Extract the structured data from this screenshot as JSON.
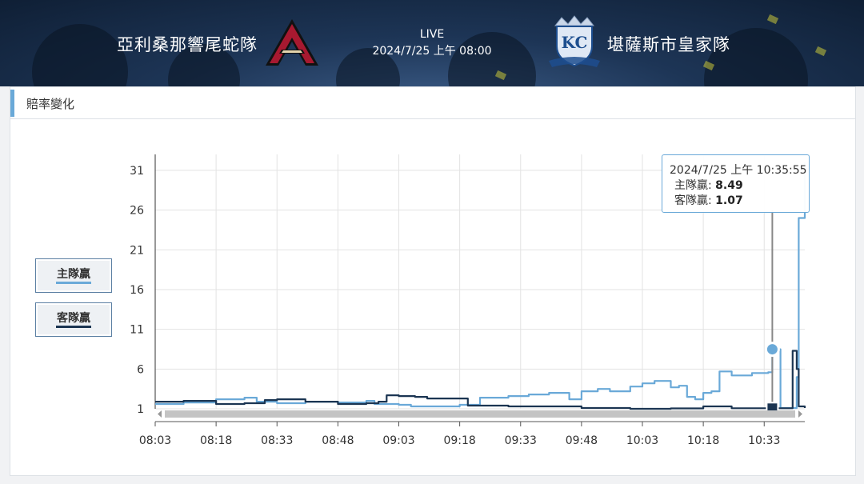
{
  "header": {
    "home_team": "亞利桑那響尾蛇隊",
    "away_team": "堪薩斯市皇家隊",
    "status": "LIVE",
    "match_time": "2024/7/25 上午 08:00"
  },
  "section": {
    "title": "賠率變化"
  },
  "legend": {
    "home": "主隊贏",
    "away": "客隊贏"
  },
  "tooltip": {
    "time": "2024/7/25 上午 10:35:55",
    "home_label": "主隊贏: ",
    "home_value": "8.49",
    "away_label": "客隊贏: ",
    "away_value": "1.07"
  },
  "colors": {
    "home": "#6aa9d8",
    "away": "#1b3552",
    "accent": "#6aa9d8"
  },
  "chart_data": {
    "type": "line",
    "x_unit": "time",
    "xticks": [
      "08:03",
      "08:18",
      "08:33",
      "08:48",
      "09:03",
      "09:18",
      "09:33",
      "09:48",
      "10:03",
      "10:18",
      "10:33"
    ],
    "yticks": [
      1,
      6,
      11,
      16,
      21,
      26,
      31
    ],
    "ylim": [
      1,
      33
    ],
    "xlim": [
      "08:03",
      "10:43"
    ],
    "grid": true,
    "series": [
      {
        "name": "主隊贏",
        "color": "#6aa9d8",
        "points": [
          [
            "08:03",
            1.6
          ],
          [
            "08:10",
            1.8
          ],
          [
            "08:18",
            2.2
          ],
          [
            "08:25",
            2.4
          ],
          [
            "08:28",
            1.9
          ],
          [
            "08:33",
            1.7
          ],
          [
            "08:40",
            1.9
          ],
          [
            "08:48",
            1.8
          ],
          [
            "08:55",
            2.0
          ],
          [
            "08:57",
            1.6
          ],
          [
            "09:03",
            1.5
          ],
          [
            "09:06",
            1.3
          ],
          [
            "09:15",
            1.3
          ],
          [
            "09:18",
            1.5
          ],
          [
            "09:22",
            1.5
          ],
          [
            "09:23",
            2.4
          ],
          [
            "09:28",
            2.4
          ],
          [
            "09:30",
            2.6
          ],
          [
            "09:35",
            2.8
          ],
          [
            "09:40",
            3.0
          ],
          [
            "09:45",
            2.2
          ],
          [
            "09:48",
            3.2
          ],
          [
            "09:52",
            3.5
          ],
          [
            "09:55",
            3.2
          ],
          [
            "10:00",
            3.8
          ],
          [
            "10:03",
            4.2
          ],
          [
            "10:06",
            4.5
          ],
          [
            "10:10",
            3.7
          ],
          [
            "10:12",
            3.9
          ],
          [
            "10:14",
            2.5
          ],
          [
            "10:16",
            2.2
          ],
          [
            "10:18",
            3.0
          ],
          [
            "10:20",
            3.2
          ],
          [
            "10:22",
            5.7
          ],
          [
            "10:25",
            5.2
          ],
          [
            "10:30",
            5.5
          ],
          [
            "10:34",
            5.6
          ],
          [
            "10:35",
            8.49
          ],
          [
            "10:37",
            1.1
          ],
          [
            "10:40",
            1.1
          ],
          [
            "10:41",
            5.0
          ],
          [
            "10:41.5",
            25.0
          ],
          [
            "10:43",
            32.0
          ]
        ]
      },
      {
        "name": "客隊贏",
        "color": "#1b3552",
        "points": [
          [
            "08:03",
            1.9
          ],
          [
            "08:10",
            2.0
          ],
          [
            "08:18",
            1.6
          ],
          [
            "08:25",
            1.7
          ],
          [
            "08:30",
            2.1
          ],
          [
            "08:33",
            2.2
          ],
          [
            "08:40",
            1.9
          ],
          [
            "08:48",
            1.6
          ],
          [
            "08:55",
            1.7
          ],
          [
            "08:58",
            1.9
          ],
          [
            "09:00",
            2.7
          ],
          [
            "09:03",
            2.6
          ],
          [
            "09:07",
            2.5
          ],
          [
            "09:10",
            2.3
          ],
          [
            "09:18",
            2.3
          ],
          [
            "09:20",
            1.4
          ],
          [
            "09:30",
            1.3
          ],
          [
            "09:40",
            1.3
          ],
          [
            "09:48",
            1.1
          ],
          [
            "10:00",
            1.0
          ],
          [
            "10:10",
            1.05
          ],
          [
            "10:18",
            1.3
          ],
          [
            "10:25",
            1.07
          ],
          [
            "10:35",
            1.07
          ],
          [
            "10:39",
            1.07
          ],
          [
            "10:40",
            8.3
          ],
          [
            "10:41",
            6.0
          ],
          [
            "10:41.5",
            1.3
          ],
          [
            "10:43",
            1.1
          ]
        ]
      }
    ],
    "hover": {
      "x": "10:35",
      "home": 8.49,
      "away": 1.07
    }
  }
}
